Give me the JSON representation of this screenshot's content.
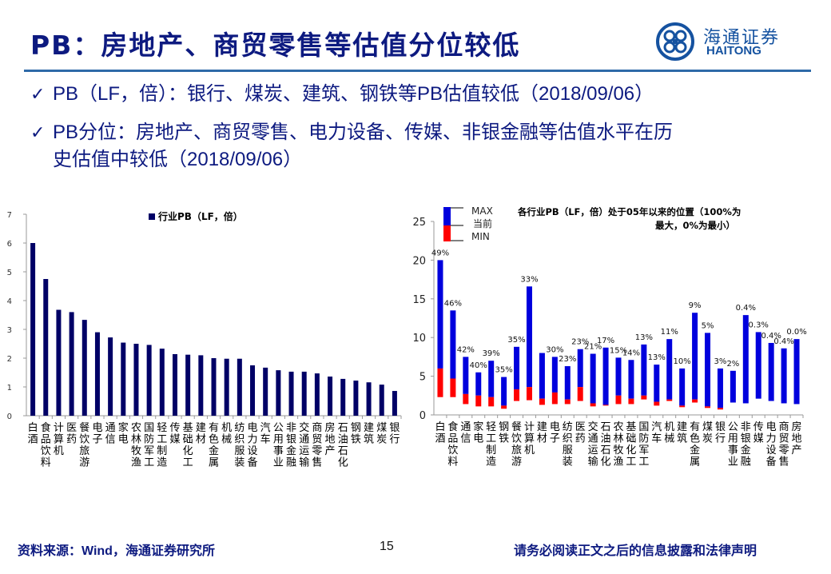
{
  "page": {
    "title": "PB：房地产、商贸零售等估值分位较低",
    "logo": {
      "icon": "haitong-logo-icon",
      "name_cn": "海通证券",
      "name_en": "HAITONG"
    },
    "bullets": [
      {
        "icon": "checkmark-icon",
        "text": "PB（LF，倍）：银行、煤炭、建筑、钢铁等PB估值较低（2018/09/06）"
      },
      {
        "icon": "checkmark-icon",
        "text": "PB分位：房地产、商贸零售、电力设备、传媒、非银金融等估值水平在历",
        "text_cont": "史估值中较低（2018/09/06）"
      }
    ],
    "footer": {
      "source": "资料来源：Wind，海通证券研究所",
      "page_number": "15",
      "disclaimer": "请务必阅读正文之后的信息披露和法律声明"
    },
    "colors": {
      "title": "#0d1a80",
      "bar_left": "#000066",
      "bar_max": "#0000dd",
      "bar_min": "#ff0000",
      "rule": "#2e6aa8"
    }
  },
  "chart_data": [
    {
      "type": "bar",
      "title": "",
      "legend": [
        {
          "name": "行业PB（LF，倍）",
          "color": "#000066"
        }
      ],
      "legend_position": "top-center",
      "xlabel": "",
      "ylabel": "",
      "ylim": [
        0,
        7
      ],
      "yticks": [
        "0",
        "1",
        "2",
        "3",
        "4",
        "5",
        "6",
        "7"
      ],
      "grid": false,
      "categories": [
        "白酒",
        "食品饮料",
        "计算机",
        "医药",
        "餐饮旅游",
        "电子",
        "通信",
        "家电",
        "农林牧渔",
        "国防军工",
        "轻工制造",
        "传媒",
        "基础化工",
        "建材",
        "有色金属",
        "机械",
        "纺织服装",
        "电力设备",
        "汽车",
        "公用事业",
        "非银金融",
        "交通运输",
        "商贸零售",
        "房地产",
        "石油石化",
        "钢铁",
        "建筑",
        "煤炭",
        "银行"
      ],
      "values": [
        6.0,
        4.75,
        3.68,
        3.6,
        3.33,
        2.9,
        2.72,
        2.54,
        2.5,
        2.46,
        2.33,
        2.14,
        2.12,
        2.1,
        2.0,
        1.98,
        1.98,
        1.75,
        1.67,
        1.58,
        1.53,
        1.53,
        1.47,
        1.36,
        1.28,
        1.22,
        1.16,
        1.08,
        0.86
      ]
    },
    {
      "type": "bar",
      "subtype": "floating-range",
      "title": "各行业PB（LF，倍）处于05年以来的位置（100%为最大，0%为最小）",
      "title_lines": [
        "各行业PB（LF，倍）处于05年以来的位置（100%为",
        "最大，0%为最小）"
      ],
      "legend": [
        {
          "name": "MAX",
          "color": "#0000dd"
        },
        {
          "name": "当前",
          "color": "#0000dd/#ff0000"
        },
        {
          "name": "MIN",
          "color": "#ff0000"
        }
      ],
      "legend_position": "top-left",
      "xlabel": "",
      "ylabel": "",
      "ylim": [
        0,
        25
      ],
      "yticks": [
        "0",
        "5",
        "10",
        "15",
        "20",
        "25"
      ],
      "grid": false,
      "categories": [
        "白酒",
        "食品饮料",
        "通信",
        "家电",
        "轻工制造",
        "钢铁",
        "餐饮旅游",
        "计算机",
        "建材",
        "电子",
        "纺织服装",
        "医药",
        "交通运输",
        "石油石化",
        "农林牧渔",
        "基础化工",
        "国防军工",
        "汽车",
        "机械",
        "建筑",
        "有色金属",
        "煤炭",
        "银行",
        "公用事业",
        "非银金融",
        "传媒",
        "电力设备",
        "商贸零售",
        "房地产"
      ],
      "series": [
        {
          "name": "MAX",
          "values": [
            20.0,
            13.5,
            7.5,
            5.5,
            7.0,
            4.9,
            8.8,
            16.6,
            8.0,
            7.5,
            6.3,
            8.5,
            7.9,
            8.7,
            7.4,
            7.1,
            9.1,
            6.5,
            9.8,
            6.0,
            13.2,
            10.6,
            6.0,
            5.7,
            12.9,
            10.7,
            9.3,
            8.6,
            9.8
          ]
        },
        {
          "name": "当前",
          "values": [
            6.0,
            4.7,
            2.7,
            2.5,
            2.3,
            1.2,
            3.3,
            3.6,
            2.1,
            2.9,
            2.0,
            3.6,
            1.5,
            1.3,
            2.5,
            2.1,
            2.5,
            1.7,
            2.0,
            1.2,
            2.0,
            1.1,
            0.9,
            1.6,
            1.5,
            2.1,
            1.8,
            1.5,
            1.4
          ]
        },
        {
          "name": "MIN",
          "values": [
            2.3,
            2.3,
            1.4,
            1.1,
            1.1,
            0.8,
            1.8,
            1.9,
            1.3,
            1.4,
            1.4,
            1.8,
            1.1,
            1.2,
            1.4,
            1.4,
            2.0,
            1.2,
            1.8,
            1.0,
            1.6,
            0.9,
            0.7,
            1.6,
            1.5,
            2.1,
            1.8,
            1.5,
            1.4
          ]
        }
      ],
      "data_labels": [
        "49%",
        "46%",
        "42%",
        "40%",
        "39%",
        "35%",
        "35%",
        "33%",
        "",
        "30%",
        "23%",
        "23%",
        "21%",
        "17%",
        "15%",
        "14%",
        "13%",
        "13%",
        "11%",
        "10%",
        "9%",
        "5%",
        "3%",
        "2%",
        "0.4%",
        "0.3%",
        "0.4%",
        "0.4%",
        "0.0%"
      ]
    }
  ]
}
